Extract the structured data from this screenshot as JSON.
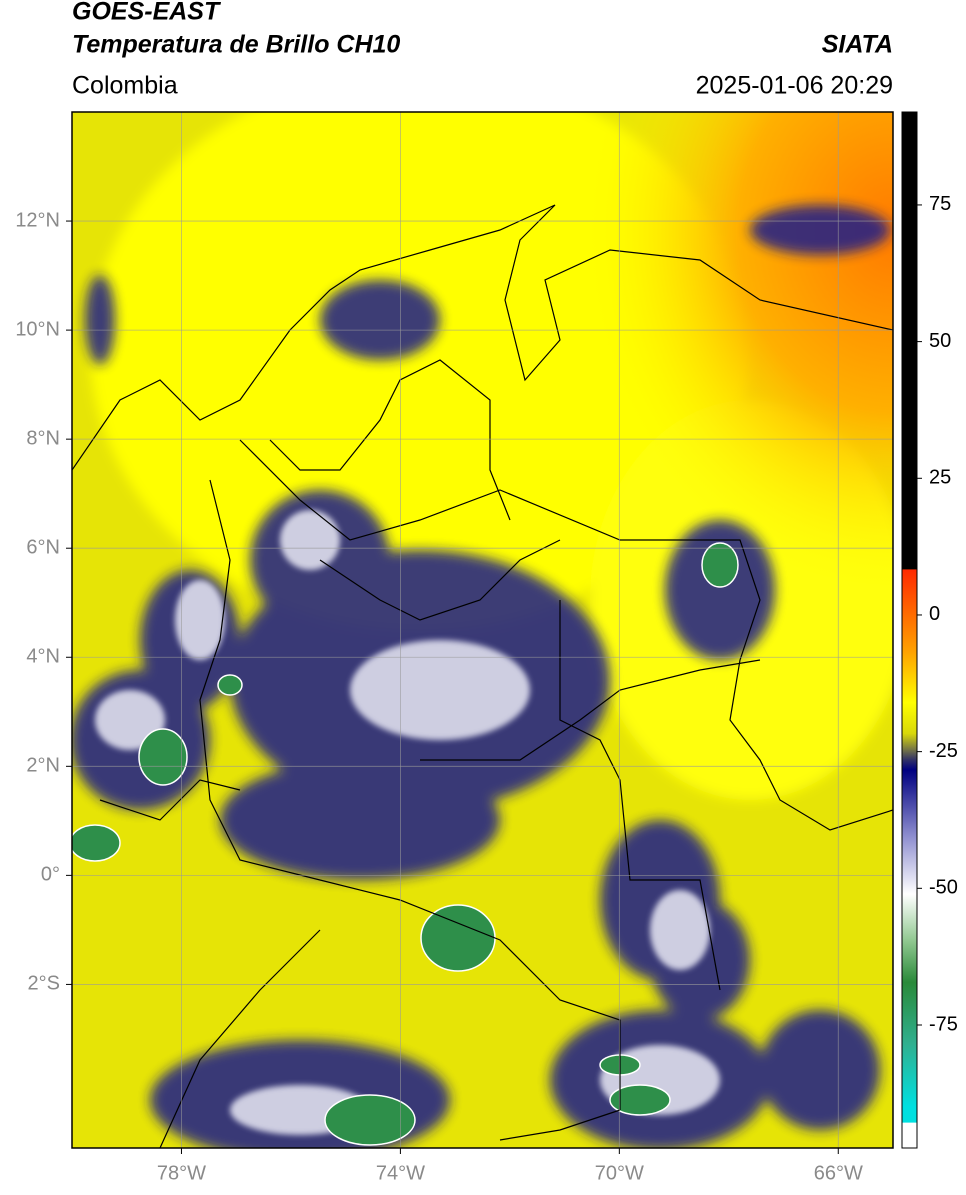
{
  "header": {
    "line1": "GOES-EAST",
    "line2": "Temperatura de Brillo CH10",
    "region": "Colombia",
    "source": "SIATA",
    "timestamp": "2025-01-06 20:29"
  },
  "map": {
    "xlim": [
      -80,
      -65
    ],
    "ylim": [
      -5,
      14
    ],
    "xticks": [
      {
        "value": -78,
        "label": "78°W"
      },
      {
        "value": -74,
        "label": "74°W"
      },
      {
        "value": -70,
        "label": "70°W"
      },
      {
        "value": -66,
        "label": "66°W"
      }
    ],
    "yticks": [
      {
        "value": 12,
        "label": "12°N"
      },
      {
        "value": 10,
        "label": "10°N"
      },
      {
        "value": 8,
        "label": "8°N"
      },
      {
        "value": 6,
        "label": "6°N"
      },
      {
        "value": 4,
        "label": "4°N"
      },
      {
        "value": 2,
        "label": "2°N"
      },
      {
        "value": 0,
        "label": "0°"
      },
      {
        "value": -2,
        "label": "2°S"
      }
    ]
  },
  "colorbar": {
    "lim": [
      -97.5,
      92
    ],
    "ticks": [
      75,
      50,
      25,
      0,
      -25,
      -50,
      -75
    ]
  }
}
